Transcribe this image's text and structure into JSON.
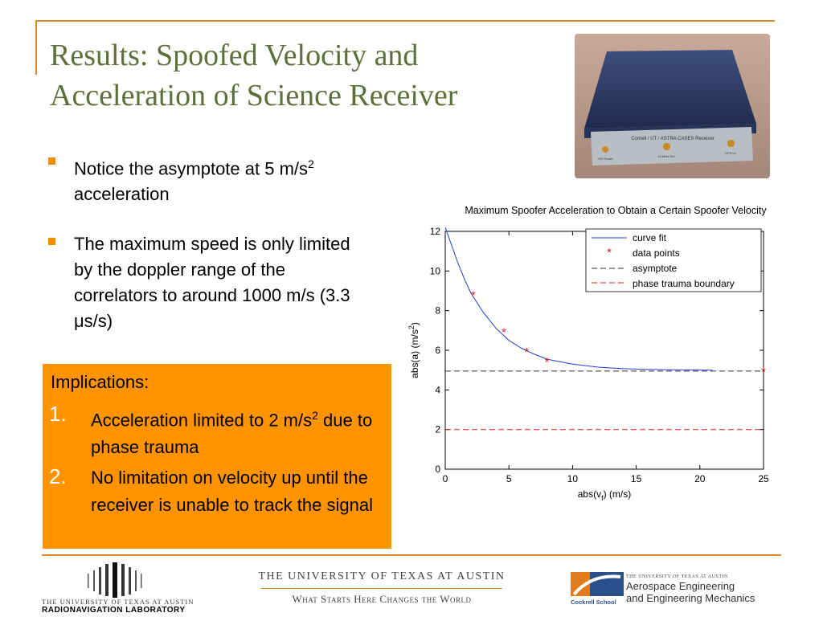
{
  "slide": {
    "title_line1": "Results: Spoofed Velocity and",
    "title_line2": "Acceleration of Science Receiver"
  },
  "photo": {
    "label": "Cornell / UT / ASTRA CASES Receiver",
    "port_labels": [
      "+5V Power",
      "10 MHz Ref",
      "GPS L1"
    ]
  },
  "bullets": [
    {
      "pre": "Notice the asymptote at 5 m/s",
      "sup": "2",
      "post": " acceleration"
    },
    {
      "text": "The maximum speed is only limited by the doppler range of the correlators to around 1000 m/s (3.3 μs/s)"
    }
  ],
  "implications": {
    "title": "Implications:",
    "items": [
      {
        "num": "1.",
        "pre": "Acceleration limited to 2 m/s",
        "sup": "2",
        "post": " due to phase trauma"
      },
      {
        "num": "2.",
        "text": "No limitation on velocity up until the receiver is unable to track the signal"
      }
    ]
  },
  "chart_data": {
    "type": "line",
    "title": "Maximum Spoofer Acceleration to Obtain a Certain Spoofer Velocity",
    "xlabel": "abs(v",
    "xlabel_sub": "f",
    "xlabel_suffix": ") (m/s)",
    "ylabel": "abs(a) (m/s",
    "ylabel_sup": "2",
    "ylabel_suffix": ")",
    "xlim": [
      0,
      25
    ],
    "ylim": [
      0,
      12
    ],
    "xticks": [
      0,
      5,
      10,
      15,
      20,
      25
    ],
    "yticks": [
      0,
      2,
      4,
      6,
      8,
      10,
      12
    ],
    "legend_position": "top-right",
    "grid": false,
    "series": [
      {
        "name": "curve fit",
        "style": "line",
        "color": "#1f3fd6",
        "x": [
          0,
          0.5,
          1,
          1.5,
          2,
          3,
          4,
          5,
          6,
          7,
          8,
          10,
          12,
          14,
          16,
          18,
          21
        ],
        "y": [
          12.2,
          11.3,
          10.4,
          9.6,
          8.9,
          7.9,
          7.1,
          6.5,
          6.1,
          5.8,
          5.55,
          5.3,
          5.15,
          5.07,
          5.03,
          5.01,
          5.0
        ]
      },
      {
        "name": "data points",
        "style": "marker",
        "color": "#e0202a",
        "x": [
          2.2,
          4.6,
          6.4,
          8.0,
          25.0
        ],
        "y": [
          8.85,
          7.0,
          6.0,
          5.5,
          5.0
        ]
      },
      {
        "name": "asymptote",
        "style": "dashed",
        "color": "#333333",
        "x": [
          0,
          25
        ],
        "y": [
          4.95,
          4.95
        ]
      },
      {
        "name": "phase trauma boundary",
        "style": "dashed",
        "color": "#e0202a",
        "x": [
          0,
          25
        ],
        "y": [
          2.0,
          2.0
        ]
      }
    ]
  },
  "footer": {
    "lab_line1": "THE UNIVERSITY OF TEXAS AT AUSTIN",
    "lab_line2": "RADIONAVIGATION LABORATORY",
    "ut_name": "THE UNIVERSITY OF TEXAS AT AUSTIN",
    "ut_motto": "What Starts Here Changes the World",
    "cockrell": "Cockrell School",
    "dept_small": "THE UNIVERSITY OF TEXAS AT AUSTIN",
    "dept_line1": "Aerospace Engineering",
    "dept_line2": "and Engineering Mechanics"
  },
  "colors": {
    "title": "#5f6f3a",
    "accent_rule": "#d98a2b",
    "bullet": "#f28d00",
    "implications_box": "#ff9400"
  }
}
